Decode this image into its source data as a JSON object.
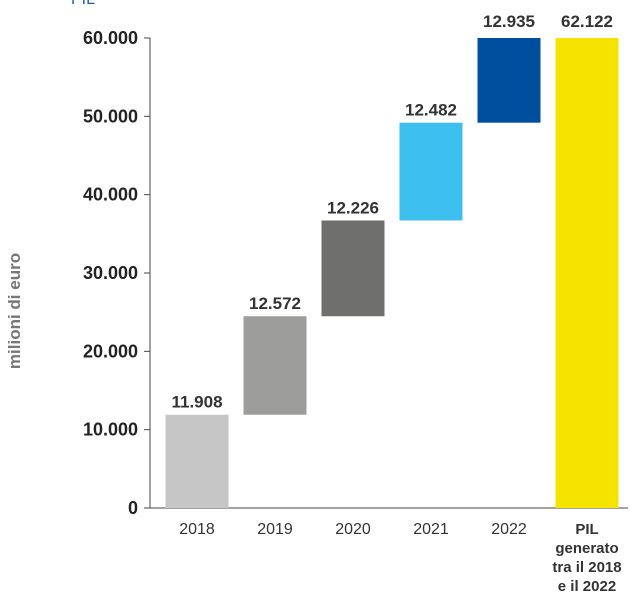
{
  "clipped_heading": "PIL",
  "chart_data": {
    "type": "bar",
    "subtype": "waterfall",
    "ylabel": "milioni di euro",
    "ylim": [
      0,
      60000
    ],
    "y_ticks": [
      "0",
      "10.000",
      "20.000",
      "30.000",
      "40.000",
      "50.000",
      "60.000"
    ],
    "y_tick_values": [
      0,
      10000,
      20000,
      30000,
      40000,
      50000,
      60000
    ],
    "grid": false,
    "categories": [
      "2018",
      "2019",
      "2020",
      "2021",
      "2022",
      "PIL generato tra il 2018 e il 2022"
    ],
    "category_lines": [
      [
        "2018"
      ],
      [
        "2019"
      ],
      [
        "2020"
      ],
      [
        "2021"
      ],
      [
        "2022"
      ],
      [
        "PIL",
        "generato",
        "tra il 2018",
        "e il 2022"
      ]
    ],
    "values": [
      11908,
      12572,
      12226,
      12482,
      12935,
      62122
    ],
    "value_labels": [
      "11.908",
      "12.572",
      "12.226",
      "12.482",
      "12.935",
      "62.122"
    ],
    "colors": [
      "#c6c6c6",
      "#9d9d9c",
      "#6f6f6e",
      "#3dbfef",
      "#004f9f",
      "#f5e400"
    ]
  }
}
